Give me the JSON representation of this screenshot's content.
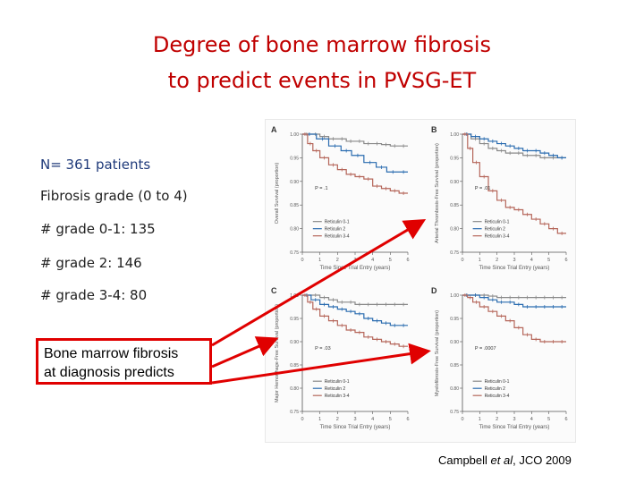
{
  "slide": {
    "title_line1": "Degree of bone marrow fibrosis",
    "title_line2": "to predict events in PVSG-ET",
    "bullets": [
      "N= 361 patients",
      "Fibrosis grade (0 to 4)",
      "# grade 0-1: 135",
      "# grade 2: 146",
      "# grade 3-4: 80"
    ],
    "callout_line1": "Bone marrow fibrosis",
    "callout_line2": "at diagnosis predicts",
    "citation_prefix": "Campbell ",
    "citation_italic": "et al",
    "citation_suffix": ", JCO 2009",
    "arrow_color": "#e00000",
    "title_color": "#c00000"
  },
  "chart_data": [
    {
      "type": "line",
      "panel": "A",
      "ylabel": "Overall Survival (proportion)",
      "xlabel": "Time Since Trial Entry (years)",
      "ylim": [
        0.75,
        1.0
      ],
      "xlim": [
        0,
        6
      ],
      "x_ticks": [
        "0",
        "1",
        "2",
        "3",
        "4",
        "5",
        "6"
      ],
      "y_ticks": [
        "0.75",
        "0.80",
        "0.85",
        "0.90",
        "0.95",
        "1.00"
      ],
      "annotation": "P = .1",
      "legend": [
        "Reticulin 0-1",
        "Reticulin 2",
        "Reticulin 3-4"
      ],
      "series": [
        {
          "name": "Reticulin 0-1",
          "color": "#8a8a8a",
          "x": [
            0,
            0.5,
            1,
            1.5,
            2,
            2.5,
            3,
            3.5,
            4,
            4.5,
            5,
            5.5,
            6
          ],
          "y": [
            1.0,
            1.0,
            0.995,
            0.99,
            0.99,
            0.985,
            0.985,
            0.98,
            0.98,
            0.978,
            0.975,
            0.975,
            0.975
          ]
        },
        {
          "name": "Reticulin 2",
          "color": "#2b6cb0",
          "x": [
            0,
            0.8,
            1.5,
            2.2,
            2.8,
            3.5,
            4.2,
            4.8,
            5.5,
            6
          ],
          "y": [
            1.0,
            0.99,
            0.975,
            0.965,
            0.955,
            0.94,
            0.93,
            0.92,
            0.92,
            0.92
          ]
        },
        {
          "name": "Reticulin 3-4",
          "color": "#b5665a",
          "x": [
            0,
            0.3,
            0.6,
            1,
            1.5,
            2,
            2.5,
            3,
            3.5,
            4,
            4.5,
            5,
            5.5,
            6
          ],
          "y": [
            1.0,
            0.98,
            0.965,
            0.95,
            0.935,
            0.925,
            0.915,
            0.91,
            0.905,
            0.89,
            0.885,
            0.88,
            0.875,
            0.875
          ]
        }
      ]
    },
    {
      "type": "line",
      "panel": "B",
      "ylabel": "Arterial Thrombosis-Free Survival (proportion)",
      "xlabel": "Time Since Trial Entry (years)",
      "ylim": [
        0.75,
        1.0
      ],
      "xlim": [
        0,
        6
      ],
      "x_ticks": [
        "0",
        "1",
        "2",
        "3",
        "4",
        "5",
        "6"
      ],
      "y_ticks": [
        "0.75",
        "0.80",
        "0.85",
        "0.90",
        "0.95",
        "1.00"
      ],
      "annotation": "P = .01",
      "legend": [
        "Reticulin 0-1",
        "Reticulin 2",
        "Reticulin 3-4"
      ],
      "series": [
        {
          "name": "Reticulin 0-1",
          "color": "#8a8a8a",
          "x": [
            0,
            0.5,
            1,
            1.5,
            2,
            2.5,
            3,
            3.5,
            4,
            4.5,
            5,
            5.5,
            6
          ],
          "y": [
            1.0,
            0.99,
            0.98,
            0.97,
            0.965,
            0.96,
            0.96,
            0.955,
            0.955,
            0.95,
            0.95,
            0.95,
            0.95
          ]
        },
        {
          "name": "Reticulin 2",
          "color": "#2b6cb0",
          "x": [
            0,
            0.5,
            1,
            1.5,
            2,
            2.5,
            3,
            3.5,
            4,
            4.5,
            5,
            5.5,
            6
          ],
          "y": [
            1.0,
            0.995,
            0.99,
            0.985,
            0.98,
            0.975,
            0.97,
            0.965,
            0.965,
            0.96,
            0.955,
            0.95,
            0.95
          ]
        },
        {
          "name": "Reticulin 3-4",
          "color": "#b5665a",
          "x": [
            0,
            0.3,
            0.6,
            1,
            1.5,
            2,
            2.5,
            3,
            3.5,
            4,
            4.5,
            5,
            5.5,
            6
          ],
          "y": [
            1.0,
            0.97,
            0.94,
            0.91,
            0.88,
            0.86,
            0.845,
            0.84,
            0.83,
            0.82,
            0.81,
            0.8,
            0.79,
            0.79
          ]
        }
      ]
    },
    {
      "type": "line",
      "panel": "C",
      "ylabel": "Major Hemorrhage-Free Survival (proportion)",
      "xlabel": "Time Since Trial Entry (years)",
      "ylim": [
        0.75,
        1.0
      ],
      "xlim": [
        0,
        6
      ],
      "x_ticks": [
        "0",
        "1",
        "2",
        "3",
        "4",
        "5",
        "6"
      ],
      "y_ticks": [
        "0.75",
        "0.80",
        "0.85",
        "0.90",
        "0.95",
        "1.00"
      ],
      "annotation": "P = .03",
      "legend": [
        "Reticulin 0-1",
        "Reticulin 2",
        "Reticulin 3-4"
      ],
      "series": [
        {
          "name": "Reticulin 0-1",
          "color": "#8a8a8a",
          "x": [
            0,
            0.5,
            1,
            1.5,
            2,
            2.5,
            3,
            3.5,
            4,
            4.5,
            5,
            5.5,
            6
          ],
          "y": [
            1.0,
            1.0,
            0.995,
            0.99,
            0.985,
            0.985,
            0.98,
            0.98,
            0.98,
            0.98,
            0.98,
            0.98,
            0.98
          ]
        },
        {
          "name": "Reticulin 2",
          "color": "#2b6cb0",
          "x": [
            0,
            0.5,
            1,
            1.5,
            2,
            2.5,
            3,
            3.5,
            4,
            4.5,
            5,
            5.5,
            6
          ],
          "y": [
            1.0,
            0.99,
            0.98,
            0.975,
            0.97,
            0.965,
            0.96,
            0.95,
            0.945,
            0.94,
            0.935,
            0.935,
            0.935
          ]
        },
        {
          "name": "Reticulin 3-4",
          "color": "#b5665a",
          "x": [
            0,
            0.3,
            0.6,
            1,
            1.5,
            2,
            2.5,
            3,
            3.5,
            4,
            4.5,
            5,
            5.5,
            6
          ],
          "y": [
            1.0,
            0.985,
            0.97,
            0.955,
            0.945,
            0.935,
            0.925,
            0.92,
            0.91,
            0.905,
            0.9,
            0.895,
            0.89,
            0.89
          ]
        }
      ]
    },
    {
      "type": "line",
      "panel": "D",
      "ylabel": "Myelofibrosis-Free Survival (proportion)",
      "xlabel": "Time Since Trial Entry (years)",
      "ylim": [
        0.75,
        1.0
      ],
      "xlim": [
        0,
        6
      ],
      "x_ticks": [
        "0",
        "1",
        "2",
        "3",
        "4",
        "5",
        "6"
      ],
      "y_ticks": [
        "0.75",
        "0.80",
        "0.85",
        "0.90",
        "0.95",
        "1.00"
      ],
      "annotation": "P = .0007",
      "legend": [
        "Reticulin 0-1",
        "Reticulin 2",
        "Reticulin 3-4"
      ],
      "series": [
        {
          "name": "Reticulin 0-1",
          "color": "#8a8a8a",
          "x": [
            0,
            0.5,
            1,
            1.5,
            2,
            2.5,
            3,
            3.5,
            4,
            4.5,
            5,
            5.5,
            6
          ],
          "y": [
            1.0,
            1.0,
            1.0,
            0.998,
            0.995,
            0.995,
            0.995,
            0.995,
            0.995,
            0.995,
            0.995,
            0.995,
            0.995
          ]
        },
        {
          "name": "Reticulin 2",
          "color": "#2b6cb0",
          "x": [
            0,
            0.5,
            1,
            1.5,
            2,
            2.5,
            3,
            3.5,
            4,
            4.5,
            5,
            5.5,
            6
          ],
          "y": [
            1.0,
            1.0,
            0.995,
            0.99,
            0.985,
            0.985,
            0.98,
            0.975,
            0.975,
            0.975,
            0.975,
            0.975,
            0.975
          ]
        },
        {
          "name": "Reticulin 3-4",
          "color": "#b5665a",
          "x": [
            0,
            0.3,
            0.6,
            1,
            1.5,
            2,
            2.5,
            3,
            3.5,
            4,
            4.5,
            5,
            5.5,
            6
          ],
          "y": [
            1.0,
            0.995,
            0.985,
            0.975,
            0.965,
            0.955,
            0.945,
            0.93,
            0.915,
            0.905,
            0.9,
            0.9,
            0.9,
            0.9
          ]
        }
      ]
    }
  ]
}
